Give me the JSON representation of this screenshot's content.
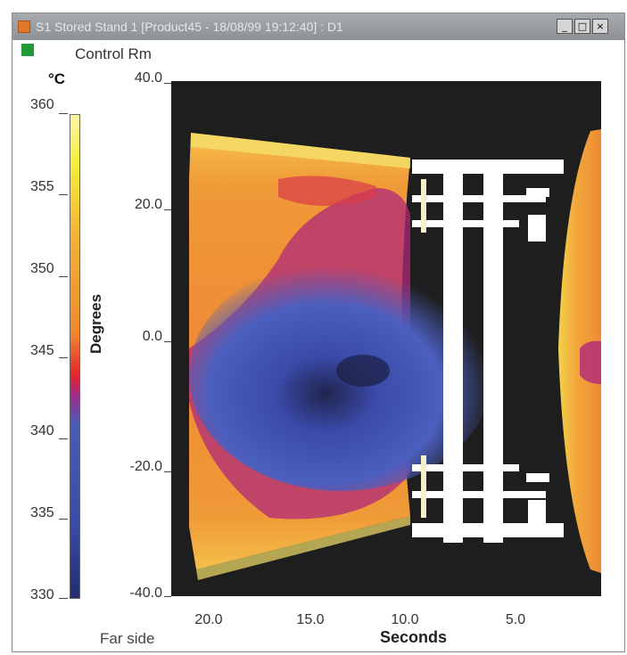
{
  "window": {
    "title": "S1 Stored Stand 1 [Product45 - 18/08/99 19:12:40] : D1",
    "buttons": {
      "minimize": "_",
      "maximize": "□",
      "close": "×"
    }
  },
  "legend": {
    "label": "Control Rm",
    "swatch_color": "#1e9a3a"
  },
  "colorbar": {
    "unit": "°C",
    "ticks": [
      "360",
      "355",
      "350",
      "345",
      "340",
      "335",
      "330"
    ]
  },
  "chart_data": {
    "type": "heatmap",
    "title": "",
    "xlabel": "Seconds",
    "ylabel": "Degrees",
    "x_tick_labels": [
      "20.0",
      "15.0",
      "10.0",
      "5.0"
    ],
    "y_tick_labels": [
      "40.0",
      "20.0",
      "0.0",
      "-20.0",
      "-40.0"
    ],
    "xlim": [
      23.0,
      0.0
    ],
    "ylim": [
      -40.0,
      40.0
    ],
    "colorbar_range": [
      330,
      360
    ],
    "annotation": "Far side"
  }
}
